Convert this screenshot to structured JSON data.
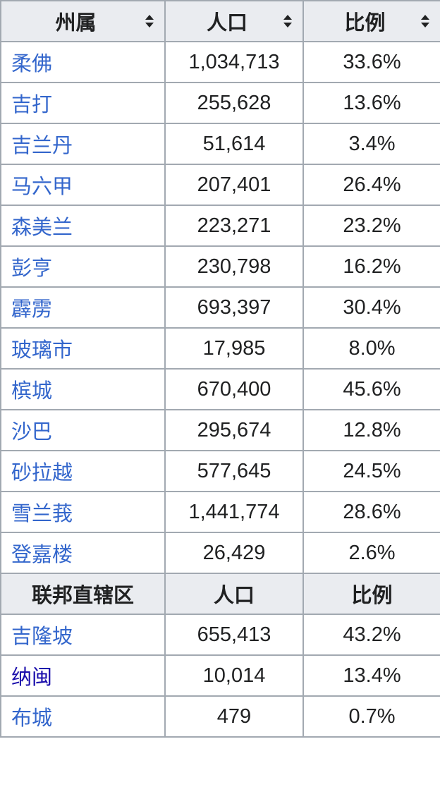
{
  "header": {
    "columns": [
      "州属",
      "人口",
      "比例"
    ],
    "sort_icon": "sort-both-icon"
  },
  "states": [
    {
      "name": "柔佛",
      "population": "1,034,713",
      "ratio": "33.6%"
    },
    {
      "name": "吉打",
      "population": "255,628",
      "ratio": "13.6%"
    },
    {
      "name": "吉兰丹",
      "population": "51,614",
      "ratio": "3.4%"
    },
    {
      "name": "马六甲",
      "population": "207,401",
      "ratio": "26.4%"
    },
    {
      "name": "森美兰",
      "population": "223,271",
      "ratio": "23.2%"
    },
    {
      "name": "彭亨",
      "population": "230,798",
      "ratio": "16.2%"
    },
    {
      "name": "霹雳",
      "population": "693,397",
      "ratio": "30.4%"
    },
    {
      "name": "玻璃市",
      "population": "17,985",
      "ratio": "8.0%"
    },
    {
      "name": "槟城",
      "population": "670,400",
      "ratio": "45.6%"
    },
    {
      "name": "沙巴",
      "population": "295,674",
      "ratio": "12.8%"
    },
    {
      "name": "砂拉越",
      "population": "577,645",
      "ratio": "24.5%"
    },
    {
      "name": "雪兰莪",
      "population": "1,441,774",
      "ratio": "28.6%"
    },
    {
      "name": "登嘉楼",
      "population": "26,429",
      "ratio": "2.6%"
    }
  ],
  "federal_header": {
    "columns": [
      "联邦直辖区",
      "人口",
      "比例"
    ]
  },
  "federal_territories": [
    {
      "name": "吉隆坡",
      "population": "655,413",
      "ratio": "43.2%"
    },
    {
      "name": "纳闽",
      "population": "10,014",
      "ratio": "13.4%"
    },
    {
      "name": "布城",
      "population": "479",
      "ratio": "0.7%"
    }
  ],
  "colors": {
    "link": "#3366cc",
    "visited_link": "#1a0dab",
    "header_bg": "#eaecf0",
    "border": "#a2a9b1",
    "text": "#202122"
  }
}
